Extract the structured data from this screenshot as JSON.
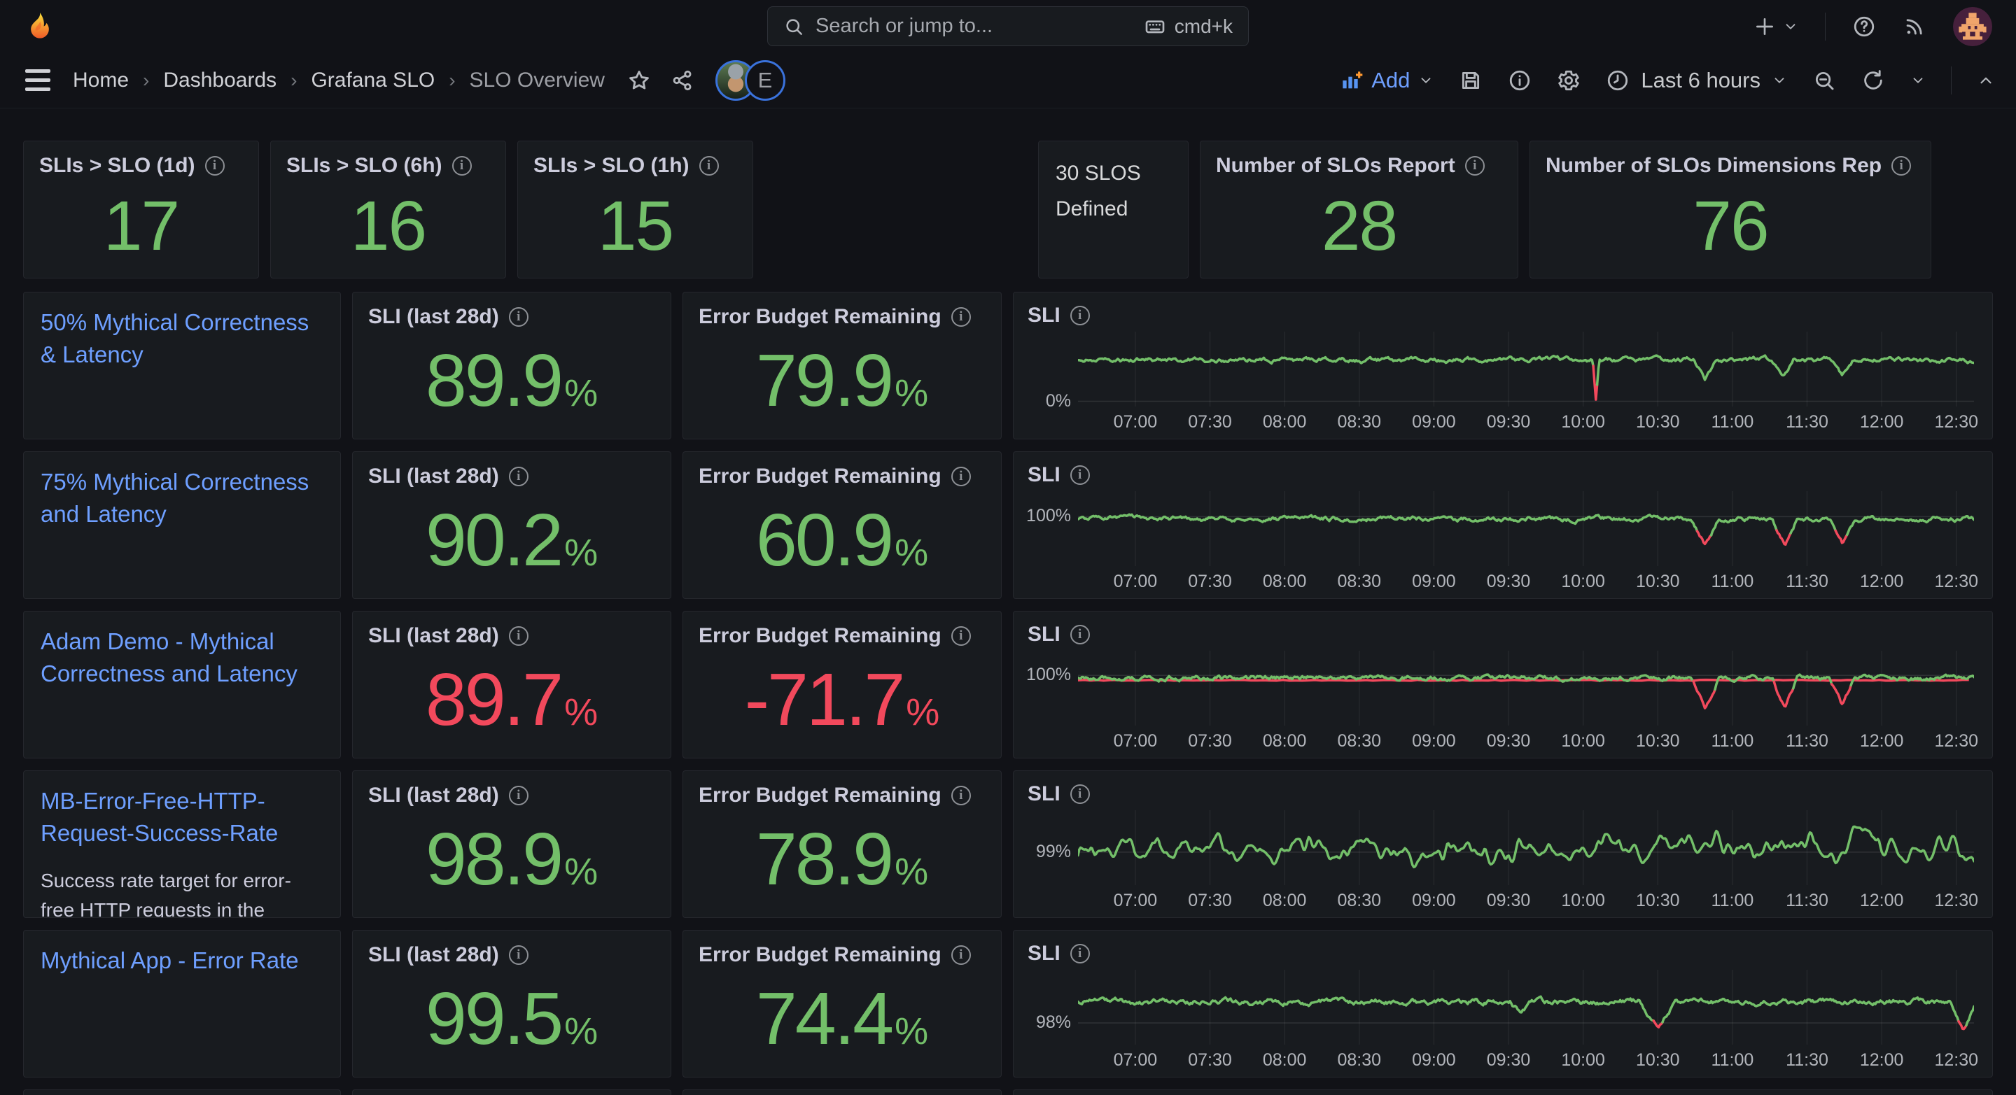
{
  "colors": {
    "green": "#73bf69",
    "red": "#f2495c",
    "link": "#6e9fff"
  },
  "topnav": {
    "search_placeholder": "Search or jump to...",
    "search_shortcut": "cmd+k"
  },
  "breadcrumb": {
    "items": [
      "Home",
      "Dashboards",
      "Grafana SLO",
      "SLO Overview"
    ],
    "separator": "›"
  },
  "toolbar": {
    "add_label": "Add",
    "time_range": "Last 6 hours",
    "avatar_letter": "E"
  },
  "stat_panels": [
    {
      "title": "SLIs > SLO (1d)",
      "value": "17"
    },
    {
      "title": "SLIs > SLO (6h)",
      "value": "16"
    },
    {
      "title": "SLIs > SLO (1h)",
      "value": "15"
    }
  ],
  "defined_panel": {
    "text": "30 SLOS Defined"
  },
  "wide_stats": [
    {
      "title": "Number of SLOs Report",
      "value": "28"
    },
    {
      "title": "Number of SLOs Dimensions Rep",
      "value": "76"
    }
  ],
  "chart_x_ticks": [
    "07:00",
    "07:30",
    "08:00",
    "08:30",
    "09:00",
    "09:30",
    "10:00",
    "10:30",
    "11:00",
    "11:30",
    "12:00",
    "12:30"
  ],
  "rows": [
    {
      "name": "50% Mythical Correctness & Latency",
      "sli_label": "SLI (last 28d)",
      "sli_value": "89.9",
      "unit": "%",
      "sli_color": "green",
      "ebr_label": "Error Budget Remaining",
      "ebr_value": "79.9",
      "ebr_color": "green",
      "chart": {
        "title": "SLI",
        "ylabel": "0%",
        "ylabel_pos": 0.93,
        "baseline": 0.38,
        "noise": 0.05,
        "decay": 0.8,
        "smooth": 0,
        "seed": 11,
        "red_threshold": 0.68,
        "underline": false,
        "dips": [
          {
            "x": 0.578,
            "w": 0.0035,
            "d": 0.55
          },
          {
            "x": 0.7,
            "w": 0.012,
            "d": 0.25
          },
          {
            "x": 0.7865,
            "w": 0.012,
            "d": 0.25
          },
          {
            "x": 0.853,
            "w": 0.012,
            "d": 0.22
          }
        ]
      }
    },
    {
      "name": "75% Mythical Correctness and Latency",
      "sli_label": "SLI (last 28d)",
      "sli_value": "90.2",
      "unit": "%",
      "sli_color": "green",
      "ebr_label": "Error Budget Remaining",
      "ebr_value": "60.9",
      "ebr_color": "green",
      "chart": {
        "title": "SLI",
        "ylabel": "100%",
        "ylabel_pos": 0.34,
        "baseline": 0.37,
        "noise": 0.05,
        "decay": 0.8,
        "smooth": 0,
        "seed": 22,
        "red_threshold": 0.55,
        "underline": false,
        "dips": [
          {
            "x": 0.7,
            "w": 0.015,
            "d": 0.36
          },
          {
            "x": 0.789,
            "w": 0.014,
            "d": 0.36
          },
          {
            "x": 0.853,
            "w": 0.014,
            "d": 0.33
          }
        ]
      }
    },
    {
      "name": "Adam Demo - Mythical Correctness and Latency",
      "sli_label": "SLI (last 28d)",
      "sli_value": "89.7",
      "unit": "%",
      "sli_color": "red",
      "ebr_label": "Error Budget Remaining",
      "ebr_value": "-71.7",
      "ebr_color": "red",
      "chart": {
        "title": "SLI",
        "ylabel": "100%",
        "ylabel_pos": 0.33,
        "baseline": 0.36,
        "noise": 0.05,
        "decay": 0.8,
        "smooth": 0,
        "seed": 33,
        "red_threshold": 0.45,
        "underline": true,
        "dips": [
          {
            "x": 0.7,
            "w": 0.015,
            "d": 0.42
          },
          {
            "x": 0.789,
            "w": 0.014,
            "d": 0.42
          },
          {
            "x": 0.853,
            "w": 0.014,
            "d": 0.39
          }
        ]
      }
    },
    {
      "name": "MB-Error-Free-HTTP-Request-Success-Rate",
      "desc": "Success rate target for error-free HTTP requests in the",
      "sli_label": "SLI (last 28d)",
      "sli_value": "98.9",
      "unit": "%",
      "sli_color": "green",
      "ebr_label": "Error Budget Remaining",
      "ebr_value": "78.9",
      "ebr_color": "green",
      "chart": {
        "title": "SLI",
        "ylabel": "99%",
        "ylabel_pos": 0.56,
        "baseline": 0.52,
        "noise": 0.3,
        "decay": 0.82,
        "smooth": 2,
        "seed": 44,
        "red_threshold": null,
        "underline": false,
        "dips": []
      }
    },
    {
      "name": "Mythical App - Error Rate",
      "sli_label": "SLI (last 28d)",
      "sli_value": "99.5",
      "unit": "%",
      "sli_color": "green",
      "ebr_label": "Error Budget Remaining",
      "ebr_value": "74.4",
      "ebr_color": "green",
      "chart": {
        "title": "SLI",
        "ylabel": "98%",
        "ylabel_pos": 0.71,
        "baseline": 0.43,
        "noise": 0.06,
        "decay": 0.8,
        "smooth": 0,
        "seed": 55,
        "red_threshold": 0.7,
        "underline": false,
        "dips": [
          {
            "x": 0.494,
            "w": 0.012,
            "d": 0.14
          },
          {
            "x": 0.647,
            "w": 0.02,
            "d": 0.33
          },
          {
            "x": 0.988,
            "w": 0.015,
            "d": 0.36
          }
        ]
      }
    }
  ]
}
